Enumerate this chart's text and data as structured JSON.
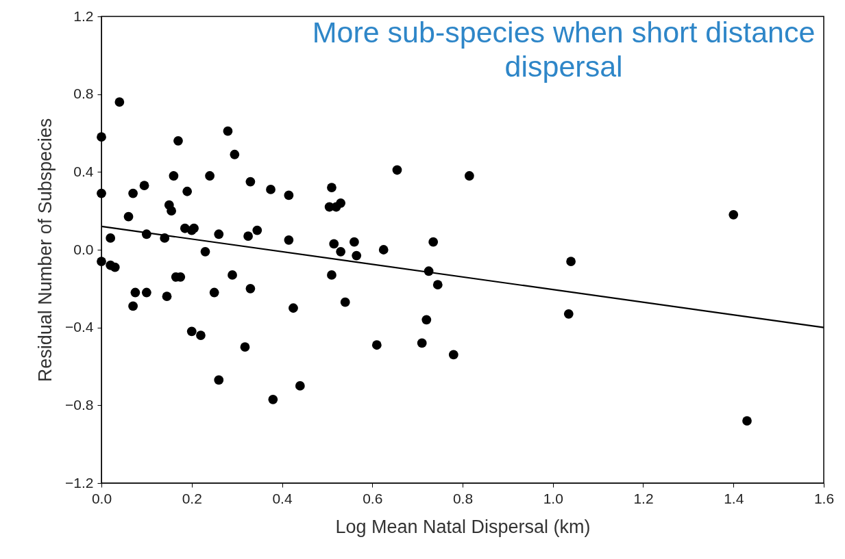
{
  "chart_data": {
    "type": "scatter",
    "xlabel": "Log Mean Natal Dispersal (km)",
    "ylabel": "Residual Number of Subspecies",
    "annotations": [
      "More sub-species when short distance dispersal"
    ],
    "xlim": [
      0,
      1.6
    ],
    "xticks": [
      {
        "value": 0,
        "label": "0.0"
      },
      0.2,
      0.4,
      0.6,
      0.8,
      {
        "value": 1,
        "label": "1.0"
      },
      1.2,
      1.4,
      1.6
    ],
    "ylim": [
      -1.2,
      1.2
    ],
    "yticks": [
      -1.2,
      -0.8,
      -0.4,
      {
        "value": 0,
        "label": "0.0"
      },
      0.4,
      0.8,
      1.2
    ],
    "grid": false,
    "marker": "circle",
    "series": [
      {
        "color": "#000000",
        "x": [
          0.0,
          0.04,
          0.0,
          0.0,
          0.02,
          0.02,
          0.03,
          0.06,
          0.07,
          0.095,
          0.075,
          0.1,
          0.07,
          0.1,
          0.14,
          0.145,
          0.15,
          0.155,
          0.16,
          0.17,
          0.165,
          0.175,
          0.19,
          0.185,
          0.2,
          0.205,
          0.2,
          0.22,
          0.23,
          0.24,
          0.25,
          0.26,
          0.26,
          0.28,
          0.295,
          0.29,
          0.325,
          0.33,
          0.33,
          0.345,
          0.318,
          0.375,
          0.38,
          0.415,
          0.415,
          0.425,
          0.44,
          0.51,
          0.505,
          0.52,
          0.53,
          0.515,
          0.53,
          0.51,
          0.54,
          0.56,
          0.565,
          0.625,
          0.61,
          0.655,
          0.71,
          0.72,
          0.725,
          0.735,
          0.745,
          0.78,
          0.815,
          1.04,
          1.035,
          1.4,
          1.43
        ],
        "values": [
          0.58,
          0.76,
          0.29,
          -0.06,
          0.06,
          -0.08,
          -0.09,
          0.17,
          0.29,
          0.33,
          -0.22,
          -0.22,
          -0.29,
          0.08,
          0.06,
          -0.24,
          0.23,
          0.2,
          0.38,
          0.56,
          -0.14,
          -0.14,
          0.3,
          0.11,
          0.1,
          0.11,
          -0.42,
          -0.44,
          -0.01,
          0.38,
          -0.22,
          0.08,
          -0.67,
          0.61,
          0.49,
          -0.13,
          0.07,
          0.35,
          -0.2,
          0.1,
          -0.5,
          0.31,
          -0.77,
          0.28,
          0.05,
          -0.3,
          -0.7,
          0.32,
          0.22,
          0.22,
          0.24,
          0.03,
          -0.01,
          -0.13,
          -0.27,
          0.04,
          -0.03,
          0.0,
          -0.49,
          0.41,
          -0.48,
          -0.36,
          -0.11,
          0.04,
          -0.18,
          -0.54,
          0.38,
          -0.06,
          -0.33,
          0.18,
          -0.88
        ]
      },
      {
        "type": "line",
        "color": "#000000",
        "marker": "none",
        "line_style": "solid",
        "x": [
          0,
          1.6
        ],
        "values": [
          0.12,
          -0.4
        ]
      }
    ]
  }
}
